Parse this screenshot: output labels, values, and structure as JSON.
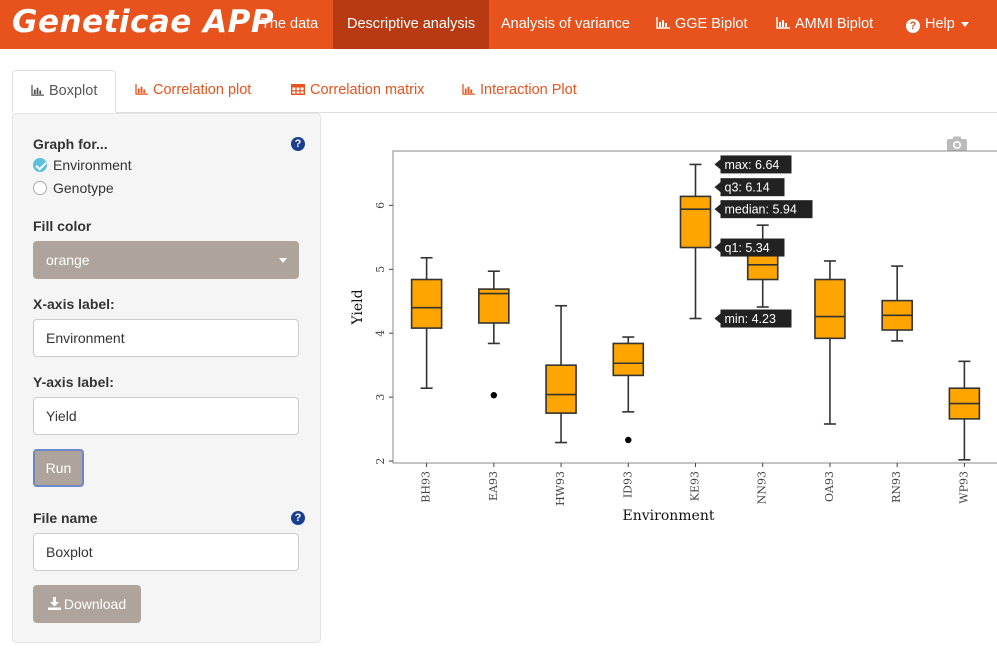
{
  "app": {
    "title": "Geneticae APP"
  },
  "nav": {
    "items": [
      {
        "label": "The data"
      },
      {
        "label": "Descriptive analysis"
      },
      {
        "label": "Analysis of variance"
      },
      {
        "label": "GGE Biplot"
      },
      {
        "label": "AMMI Biplot"
      },
      {
        "label": "Help"
      }
    ]
  },
  "tabs": [
    {
      "label": "Boxplot"
    },
    {
      "label": "Correlation plot"
    },
    {
      "label": "Correlation matrix"
    },
    {
      "label": "Interaction Plot"
    }
  ],
  "sidebar": {
    "graph_for_label": "Graph for...",
    "radio_environment": "Environment",
    "radio_genotype": "Genotype",
    "fill_color_label": "Fill color",
    "fill_color_value": "orange",
    "xaxis_label": "X-axis label:",
    "xaxis_value": "Environment",
    "yaxis_label": "Y-axis label:",
    "yaxis_value": "Yield",
    "run_label": "Run",
    "file_name_label": "File name",
    "file_name_value": "Boxplot",
    "download_label": "Download"
  },
  "colors": {
    "brand": "#e8521c",
    "box_fill": "#ffa500",
    "button": "#aea49b"
  },
  "chart_data": {
    "type": "boxplot",
    "xlabel": "Environment",
    "ylabel": "Yield",
    "yticks": [
      2,
      3,
      4,
      5,
      6
    ],
    "ylim": [
      1.97,
      6.85
    ],
    "categories": [
      "BH93",
      "EA93",
      "HW93",
      "ID93",
      "KE93",
      "NN93",
      "OA93",
      "RN93",
      "WP93"
    ],
    "boxes": [
      {
        "name": "BH93",
        "min": 3.14,
        "q1": 4.08,
        "median": 4.4,
        "q3": 4.84,
        "max": 5.18,
        "outliers": []
      },
      {
        "name": "EA93",
        "min": 3.84,
        "q1": 4.16,
        "median": 4.62,
        "q3": 4.69,
        "max": 4.97,
        "outliers": [
          3.03
        ]
      },
      {
        "name": "HW93",
        "min": 2.29,
        "q1": 2.75,
        "median": 3.04,
        "q3": 3.5,
        "max": 4.43,
        "outliers": []
      },
      {
        "name": "ID93",
        "min": 2.77,
        "q1": 3.34,
        "median": 3.53,
        "q3": 3.84,
        "max": 3.94,
        "outliers": [
          2.33
        ]
      },
      {
        "name": "KE93",
        "min": 4.23,
        "q1": 5.34,
        "median": 5.94,
        "q3": 6.14,
        "max": 6.64,
        "outliers": []
      },
      {
        "name": "NN93",
        "min": 4.41,
        "q1": 4.84,
        "median": 5.07,
        "q3": 5.3,
        "max": 5.69,
        "outliers": []
      },
      {
        "name": "OA93",
        "min": 2.58,
        "q1": 3.92,
        "median": 4.26,
        "q3": 4.84,
        "max": 5.13,
        "outliers": []
      },
      {
        "name": "RN93",
        "min": 3.88,
        "q1": 4.05,
        "median": 4.28,
        "q3": 4.51,
        "max": 5.05,
        "outliers": []
      },
      {
        "name": "WP93",
        "min": 2.02,
        "q1": 2.66,
        "median": 2.9,
        "q3": 3.14,
        "max": 3.56,
        "outliers": []
      }
    ],
    "tooltip": {
      "category": "KE93",
      "labels": [
        "max: 6.64",
        "q3: 6.14",
        "median: 5.94",
        "q1: 5.34",
        "min: 4.23"
      ]
    }
  }
}
